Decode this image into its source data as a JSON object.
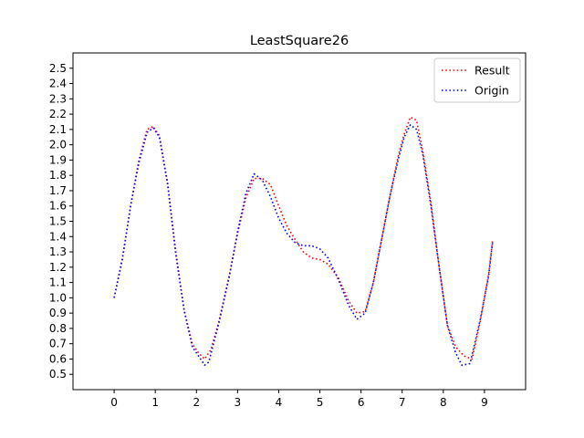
{
  "chart_data": {
    "type": "line",
    "title": "LeastSquare26",
    "xlabel": "",
    "ylabel": "",
    "xlim": [
      -1,
      10
    ],
    "ylim": [
      0.4,
      2.6
    ],
    "xticks": [
      0,
      1,
      2,
      3,
      4,
      5,
      6,
      7,
      8,
      9
    ],
    "xtick_labels": [
      "0",
      "1",
      "2",
      "3",
      "4",
      "5",
      "6",
      "7",
      "8",
      "9"
    ],
    "yticks": [
      0.5,
      0.6,
      0.7,
      0.8,
      0.9,
      1.0,
      1.1,
      1.2,
      1.3,
      1.4,
      1.5,
      1.6,
      1.7,
      1.8,
      1.9,
      2.0,
      2.1,
      2.2,
      2.3,
      2.4,
      2.5
    ],
    "ytick_labels": [
      "0.5",
      "0.6",
      "0.7",
      "0.8",
      "0.9",
      "1.0",
      "1.1",
      "1.2",
      "1.3",
      "1.4",
      "1.5",
      "1.6",
      "1.7",
      "1.8",
      "1.9",
      "2.0",
      "2.1",
      "2.2",
      "2.3",
      "2.4",
      "2.5"
    ],
    "grid": false,
    "legend_position": "top-right",
    "series": [
      {
        "name": "Result",
        "color": "#ff0000",
        "style": "dotted",
        "x": [
          0,
          0.2,
          0.4,
          0.6,
          0.8,
          0.95,
          1.1,
          1.3,
          1.5,
          1.7,
          1.9,
          2.05,
          2.2,
          2.35,
          2.55,
          2.8,
          3.0,
          3.2,
          3.4,
          3.6,
          3.8,
          4.0,
          4.2,
          4.4,
          4.6,
          4.8,
          5.0,
          5.2,
          5.45,
          5.7,
          5.9,
          6.1,
          6.3,
          6.5,
          6.7,
          6.9,
          7.05,
          7.2,
          7.35,
          7.5,
          7.7,
          7.9,
          8.1,
          8.3,
          8.5,
          8.7,
          8.9,
          9.1,
          9.2
        ],
        "y": [
          1.0,
          1.26,
          1.6,
          1.9,
          2.1,
          2.12,
          2.06,
          1.75,
          1.3,
          0.92,
          0.7,
          0.64,
          0.6,
          0.66,
          0.85,
          1.15,
          1.42,
          1.65,
          1.78,
          1.78,
          1.74,
          1.6,
          1.47,
          1.38,
          1.3,
          1.26,
          1.25,
          1.22,
          1.13,
          0.98,
          0.9,
          0.91,
          1.1,
          1.38,
          1.66,
          1.92,
          2.07,
          2.18,
          2.16,
          1.96,
          1.62,
          1.2,
          0.82,
          0.68,
          0.62,
          0.6,
          0.85,
          1.15,
          1.38
        ]
      },
      {
        "name": "Origin",
        "color": "#0000ff",
        "style": "dotted",
        "x": [
          0,
          0.2,
          0.4,
          0.6,
          0.8,
          0.95,
          1.1,
          1.3,
          1.5,
          1.7,
          1.9,
          2.05,
          2.2,
          2.3,
          2.55,
          2.8,
          3.0,
          3.2,
          3.4,
          3.6,
          3.8,
          4.0,
          4.2,
          4.4,
          4.6,
          4.8,
          5.0,
          5.2,
          5.45,
          5.7,
          5.9,
          6.1,
          6.3,
          6.5,
          6.7,
          6.9,
          7.05,
          7.2,
          7.35,
          7.5,
          7.7,
          7.9,
          8.1,
          8.3,
          8.45,
          8.65,
          8.9,
          9.1,
          9.2
        ],
        "y": [
          1.0,
          1.25,
          1.6,
          1.88,
          2.08,
          2.11,
          2.05,
          1.74,
          1.28,
          0.92,
          0.68,
          0.62,
          0.56,
          0.58,
          0.84,
          1.14,
          1.43,
          1.68,
          1.81,
          1.77,
          1.66,
          1.52,
          1.42,
          1.36,
          1.34,
          1.34,
          1.32,
          1.26,
          1.12,
          0.95,
          0.86,
          0.9,
          1.1,
          1.38,
          1.66,
          1.9,
          2.05,
          2.13,
          2.1,
          1.94,
          1.6,
          1.2,
          0.82,
          0.64,
          0.56,
          0.57,
          0.86,
          1.14,
          1.37
        ]
      }
    ]
  }
}
